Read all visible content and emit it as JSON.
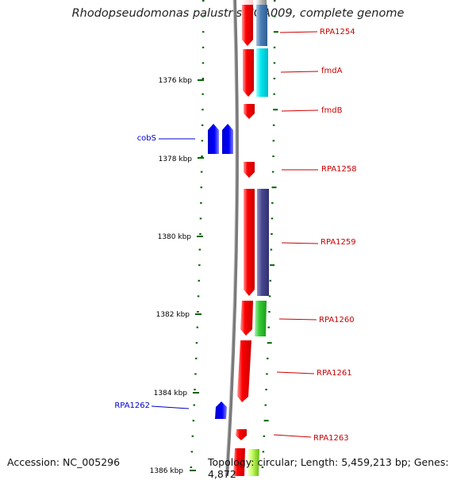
{
  "title": "Rhodopseudomonas palustris CGA009, complete genome",
  "footer": {
    "accession": "Accession: NC_005296",
    "summary": "Topology: circular; Length: 5,459,213 bp; Genes: 4,872"
  },
  "colors": {
    "forward_gene": "#ff0000",
    "reverse_gene": "#0000ff",
    "tick": "#006400",
    "backbone": "#8a8a8a",
    "forward_label": "#cc0000",
    "reverse_label": "#0000cc"
  },
  "scale": {
    "unit": "kbp",
    "major_labels": [
      "1376 kbp",
      "1378 kbp",
      "1380 kbp",
      "1382 kbp",
      "1384 kbp",
      "1386 kbp"
    ]
  },
  "genes_forward": [
    {
      "label": "RPA1254",
      "cog": "#4a7fb5"
    },
    {
      "label": "fmdA",
      "cog": "#00e5ee"
    },
    {
      "label": "fmdB",
      "cog": ""
    },
    {
      "label": "RPA1258",
      "cog": ""
    },
    {
      "label": "RPA1259",
      "cog": "#484890"
    },
    {
      "label": "RPA1260",
      "cog": "#33cc33"
    },
    {
      "label": "RPA1261",
      "cog": ""
    },
    {
      "label": "RPA1263",
      "cog": "#88dd22"
    }
  ],
  "genes_reverse": [
    {
      "label": "cobS"
    },
    {
      "label": "RPA1262"
    }
  ]
}
